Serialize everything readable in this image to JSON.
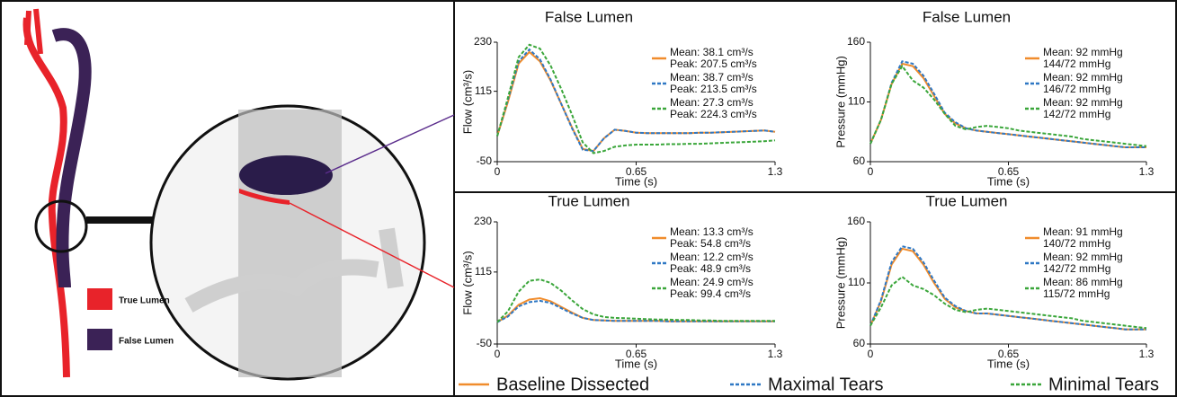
{
  "illustration": {
    "legend": [
      {
        "label": "True Lumen",
        "color": "#e8232a"
      },
      {
        "label": "False Lumen",
        "color": "#3b2256"
      }
    ]
  },
  "chart_data": [
    {
      "type": "line",
      "title": "False Lumen",
      "xlabel": "Time (s)",
      "ylabel": "Flow (cm³/s)",
      "xlim": [
        0,
        1.3
      ],
      "xticks": [
        0,
        0.65,
        1.3
      ],
      "ylim": [
        -50,
        230
      ],
      "yticks": [
        -50,
        115,
        230
      ],
      "x": [
        0,
        0.05,
        0.1,
        0.15,
        0.2,
        0.25,
        0.3,
        0.35,
        0.4,
        0.45,
        0.5,
        0.55,
        0.6,
        0.65,
        0.7,
        0.75,
        0.8,
        0.85,
        0.9,
        0.95,
        1,
        1.05,
        1.1,
        1.15,
        1.2,
        1.25,
        1.3
      ],
      "series": [
        {
          "name": "Baseline Dissected",
          "color": "#f08c2c",
          "style": "solid",
          "annotation": [
            "Mean: 38.1 cm³/s",
            "Peak: 207.5 cm³/s"
          ],
          "values": [
            10,
            90,
            180,
            207,
            185,
            140,
            85,
            30,
            -20,
            -25,
            5,
            25,
            22,
            18,
            17,
            17,
            17,
            17,
            17,
            18,
            18,
            19,
            20,
            21,
            22,
            23,
            20
          ]
        },
        {
          "name": "Maximal Tears",
          "color": "#2f78c4",
          "style": "dashed",
          "annotation": [
            "Mean: 38.7 cm³/s",
            "Peak: 213.5 cm³/s"
          ],
          "values": [
            10,
            95,
            185,
            213,
            190,
            142,
            85,
            28,
            -22,
            -25,
            5,
            25,
            22,
            18,
            17,
            17,
            17,
            17,
            17,
            18,
            18,
            19,
            20,
            21,
            22,
            23,
            20
          ]
        },
        {
          "name": "Minimal Tears",
          "color": "#3aa63a",
          "style": "dashed",
          "annotation": [
            "Mean: 27.3 cm³/s",
            "Peak: 224.3 cm³/s"
          ],
          "values": [
            10,
            100,
            195,
            224,
            215,
            175,
            120,
            60,
            -5,
            -30,
            -25,
            -15,
            -12,
            -10,
            -10,
            -10,
            -9,
            -9,
            -8,
            -8,
            -7,
            -6,
            -5,
            -4,
            -3,
            -2,
            0
          ]
        }
      ]
    },
    {
      "type": "line",
      "title": "False Lumen",
      "xlabel": "Time (s)",
      "ylabel": "Pressure (mmHg)",
      "xlim": [
        0,
        1.3
      ],
      "xticks": [
        0,
        0.65,
        1.3
      ],
      "ylim": [
        60,
        160
      ],
      "yticks": [
        60,
        110,
        160
      ],
      "x": [
        0,
        0.05,
        0.1,
        0.15,
        0.2,
        0.25,
        0.3,
        0.35,
        0.4,
        0.45,
        0.5,
        0.55,
        0.6,
        0.65,
        0.7,
        0.75,
        0.8,
        0.85,
        0.9,
        0.95,
        1,
        1.05,
        1.1,
        1.15,
        1.2,
        1.25,
        1.3
      ],
      "series": [
        {
          "name": "Baseline Dissected",
          "color": "#f08c2c",
          "style": "solid",
          "annotation": [
            "Mean: 92 mmHg",
            "144/72 mmHg"
          ],
          "values": [
            75,
            95,
            125,
            142,
            140,
            130,
            115,
            100,
            92,
            88,
            86,
            85,
            84,
            83,
            82,
            81,
            80,
            79,
            78,
            77,
            76,
            75,
            74,
            73,
            72,
            72,
            72
          ]
        },
        {
          "name": "Maximal Tears",
          "color": "#2f78c4",
          "style": "dashed",
          "annotation": [
            "Mean: 92 mmHg",
            "146/72 mmHg"
          ],
          "values": [
            75,
            95,
            126,
            144,
            142,
            132,
            117,
            101,
            93,
            88,
            86,
            85,
            84,
            83,
            82,
            81,
            80,
            79,
            78,
            77,
            76,
            75,
            74,
            73,
            72,
            72,
            72
          ]
        },
        {
          "name": "Minimal Tears",
          "color": "#3aa63a",
          "style": "dashed",
          "annotation": [
            "Mean: 92 mmHg",
            "142/72 mmHg"
          ],
          "values": [
            75,
            95,
            125,
            140,
            128,
            122,
            112,
            100,
            90,
            87,
            89,
            90,
            89,
            88,
            86,
            85,
            84,
            83,
            82,
            81,
            79,
            78,
            77,
            76,
            75,
            74,
            73
          ]
        }
      ]
    },
    {
      "type": "line",
      "title": "True Lumen",
      "xlabel": "Time (s)",
      "ylabel": "Flow (cm³/s)",
      "xlim": [
        0,
        1.3
      ],
      "xticks": [
        0,
        0.65,
        1.3
      ],
      "ylim": [
        -50,
        230
      ],
      "yticks": [
        -50,
        115,
        230
      ],
      "x": [
        0,
        0.05,
        0.1,
        0.15,
        0.2,
        0.25,
        0.3,
        0.35,
        0.4,
        0.45,
        0.5,
        0.55,
        0.6,
        0.65,
        0.7,
        0.75,
        0.8,
        0.85,
        0.9,
        0.95,
        1,
        1.05,
        1.1,
        1.15,
        1.2,
        1.25,
        1.3
      ],
      "series": [
        {
          "name": "Baseline Dissected",
          "color": "#f08c2c",
          "style": "solid",
          "annotation": [
            "Mean: 13.3 cm³/s",
            "Peak: 54.8 cm³/s"
          ],
          "values": [
            0,
            15,
            40,
            52,
            55,
            48,
            35,
            22,
            10,
            5,
            4,
            3,
            3,
            3,
            3,
            3,
            2,
            2,
            2,
            2,
            2,
            2,
            2,
            2,
            2,
            2,
            2
          ]
        },
        {
          "name": "Maximal Tears",
          "color": "#2f78c4",
          "style": "dashed",
          "annotation": [
            "Mean: 12.2 cm³/s",
            "Peak: 48.9 cm³/s"
          ],
          "values": [
            0,
            13,
            36,
            46,
            49,
            44,
            32,
            20,
            10,
            5,
            4,
            3,
            3,
            3,
            3,
            3,
            2,
            2,
            2,
            2,
            2,
            2,
            2,
            2,
            2,
            2,
            2
          ]
        },
        {
          "name": "Minimal Tears",
          "color": "#3aa63a",
          "style": "dashed",
          "annotation": [
            "Mean: 24.9 cm³/s",
            "Peak: 99.4 cm³/s"
          ],
          "values": [
            0,
            25,
            70,
            95,
            98,
            90,
            72,
            50,
            30,
            18,
            12,
            10,
            9,
            8,
            7,
            6,
            6,
            5,
            5,
            4,
            4,
            3,
            3,
            3,
            3,
            3,
            3
          ]
        }
      ]
    },
    {
      "type": "line",
      "title": "True Lumen",
      "xlabel": "Time (s)",
      "ylabel": "Pressure (mmHg)",
      "xlim": [
        0,
        1.3
      ],
      "xticks": [
        0,
        0.65,
        1.3
      ],
      "ylim": [
        60,
        160
      ],
      "yticks": [
        60,
        110,
        160
      ],
      "x": [
        0,
        0.05,
        0.1,
        0.15,
        0.2,
        0.25,
        0.3,
        0.35,
        0.4,
        0.45,
        0.5,
        0.55,
        0.6,
        0.65,
        0.7,
        0.75,
        0.8,
        0.85,
        0.9,
        0.95,
        1,
        1.05,
        1.1,
        1.15,
        1.2,
        1.25,
        1.3
      ],
      "series": [
        {
          "name": "Baseline Dissected",
          "color": "#f08c2c",
          "style": "solid",
          "annotation": [
            "Mean: 91 mmHg",
            "140/72 mmHg"
          ],
          "values": [
            75,
            95,
            125,
            138,
            136,
            125,
            110,
            97,
            90,
            87,
            85,
            85,
            84,
            83,
            82,
            81,
            80,
            79,
            78,
            77,
            76,
            75,
            74,
            73,
            72,
            72,
            72
          ]
        },
        {
          "name": "Maximal Tears",
          "color": "#2f78c4",
          "style": "dashed",
          "annotation": [
            "Mean: 92 mmHg",
            "142/72 mmHg"
          ],
          "values": [
            75,
            96,
            127,
            140,
            138,
            127,
            112,
            98,
            91,
            87,
            85,
            85,
            84,
            83,
            82,
            81,
            80,
            79,
            78,
            77,
            76,
            75,
            74,
            73,
            72,
            72,
            72
          ]
        },
        {
          "name": "Minimal Tears",
          "color": "#3aa63a",
          "style": "dashed",
          "annotation": [
            "Mean: 86 mmHg",
            "115/72 mmHg"
          ],
          "values": [
            75,
            90,
            108,
            115,
            108,
            105,
            100,
            93,
            88,
            86,
            88,
            89,
            88,
            87,
            86,
            85,
            84,
            83,
            82,
            81,
            79,
            78,
            77,
            76,
            75,
            74,
            73
          ]
        }
      ]
    }
  ]
}
